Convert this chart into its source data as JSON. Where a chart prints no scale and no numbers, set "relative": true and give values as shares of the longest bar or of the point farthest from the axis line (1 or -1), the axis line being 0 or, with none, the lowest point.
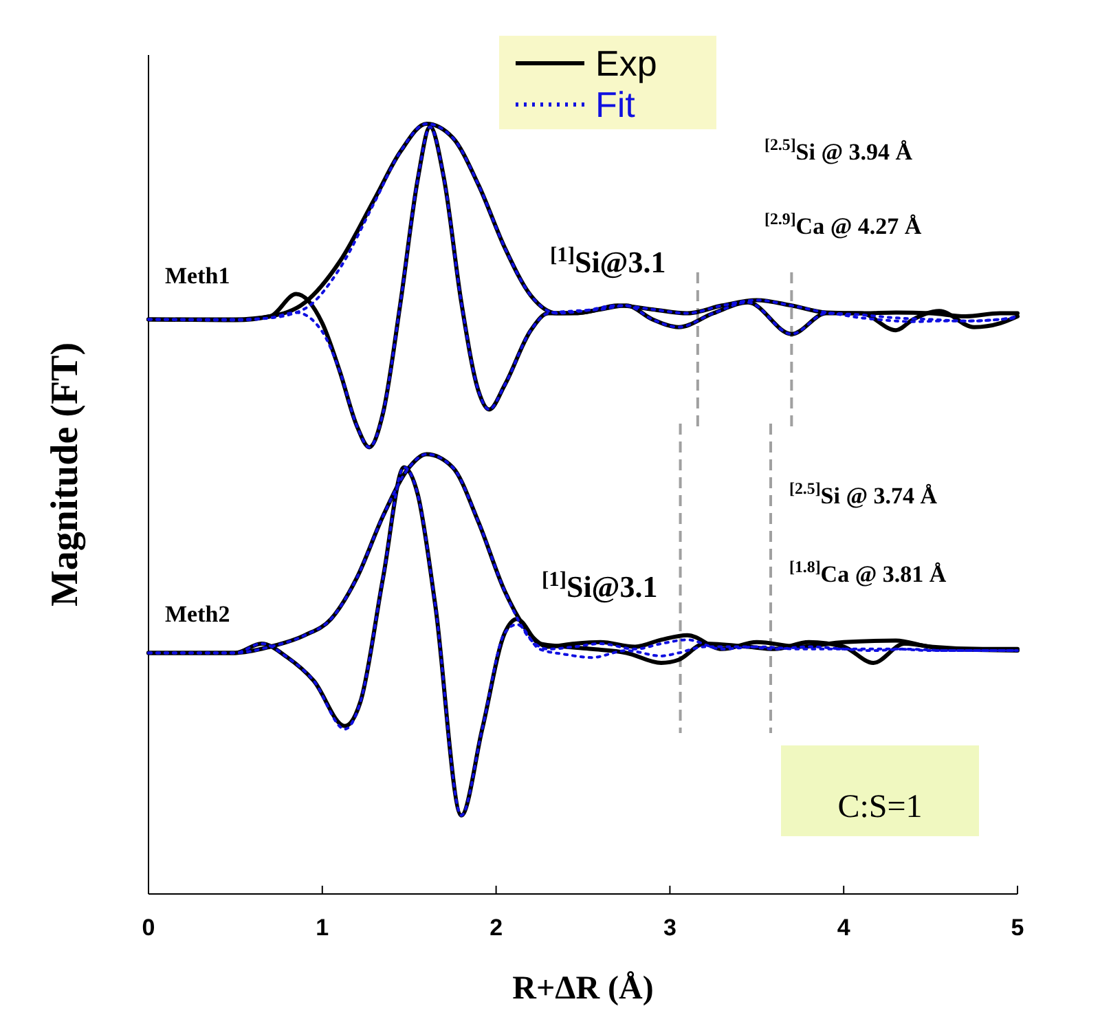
{
  "chart_data": {
    "type": "line",
    "relative": true,
    "xlabel": "R+ΔR (Å)",
    "ylabel": "Magnitude (FT)",
    "xlim": [
      0,
      5
    ],
    "xticks": [
      0,
      1,
      2,
      3,
      4,
      5
    ],
    "legend": "top",
    "grid": false,
    "series": [
      {
        "name": "Exp",
        "color": "#000000",
        "line_style": "solid",
        "x": [
          0,
          0.5,
          0.7,
          0.9,
          1.1,
          1.3,
          1.45,
          1.6,
          1.75,
          1.9,
          2.05,
          2.2,
          2.35,
          2.5,
          2.7,
          2.9,
          3.1,
          3.3,
          3.5,
          3.7,
          3.9,
          4.1,
          4.3,
          4.5,
          4.7,
          4.9,
          5
        ],
        "values": [
          0.746,
          0.746,
          0.75,
          0.768,
          0.821,
          0.902,
          0.964,
          1,
          0.982,
          0.92,
          0.839,
          0.777,
          0.754,
          0.755,
          0.764,
          0.759,
          0.754,
          0.764,
          0.771,
          0.764,
          0.755,
          0.754,
          0.755,
          0.754,
          0.75,
          0.754,
          0.754
        ]
      },
      {
        "color": "#000000",
        "line_style": "solid",
        "x": [
          0,
          0.5,
          0.7,
          0.85,
          1.0,
          1.1,
          1.2,
          1.27,
          1.35,
          1.45,
          1.55,
          1.62,
          1.7,
          1.8,
          1.9,
          1.96,
          2.05,
          2.2,
          2.3,
          2.45,
          2.6,
          2.75,
          2.9,
          3.05,
          3.25,
          3.45,
          3.7,
          3.9,
          4.1,
          4.3,
          4.4,
          4.55,
          4.75,
          4.9,
          5
        ],
        "values": [
          0.746,
          0.745,
          0.75,
          0.779,
          0.741,
          0.679,
          0.607,
          0.58,
          0.625,
          0.768,
          0.929,
          0.996,
          0.929,
          0.768,
          0.652,
          0.629,
          0.661,
          0.732,
          0.754,
          0.754,
          0.759,
          0.764,
          0.746,
          0.736,
          0.754,
          0.768,
          0.727,
          0.754,
          0.754,
          0.732,
          0.746,
          0.757,
          0.736,
          0.741,
          0.75
        ]
      },
      {
        "name": "Fit",
        "color": "#1010e0",
        "line_style": "dotted",
        "x": [
          0,
          0.5,
          0.7,
          0.9,
          1.1,
          1.3,
          1.45,
          1.6,
          1.75,
          1.9,
          2.05,
          2.2,
          2.35,
          2.5,
          2.7,
          2.9,
          3.1,
          3.3,
          3.5,
          3.7,
          3.9,
          4.1,
          4.3,
          4.5,
          4.7,
          4.9,
          5
        ],
        "values": [
          0.746,
          0.746,
          0.748,
          0.76,
          0.812,
          0.898,
          0.964,
          1,
          0.982,
          0.92,
          0.839,
          0.777,
          0.754,
          0.757,
          0.764,
          0.759,
          0.754,
          0.764,
          0.771,
          0.764,
          0.755,
          0.752,
          0.748,
          0.746,
          0.744,
          0.746,
          0.75
        ]
      },
      {
        "color": "#1010e0",
        "line_style": "dotted",
        "x": [
          0,
          0.5,
          0.7,
          0.85,
          1.0,
          1.1,
          1.2,
          1.27,
          1.35,
          1.45,
          1.55,
          1.62,
          1.7,
          1.8,
          1.9,
          1.96,
          2.05,
          2.2,
          2.3,
          2.45,
          2.6,
          2.75,
          2.9,
          3.05,
          3.25,
          3.45,
          3.7,
          3.9,
          4.1,
          4.3,
          4.4,
          4.55,
          4.75,
          4.9,
          5
        ],
        "values": [
          0.746,
          0.745,
          0.748,
          0.755,
          0.73,
          0.679,
          0.607,
          0.58,
          0.625,
          0.768,
          0.929,
          0.996,
          0.929,
          0.768,
          0.652,
          0.629,
          0.661,
          0.732,
          0.754,
          0.757,
          0.759,
          0.764,
          0.746,
          0.736,
          0.754,
          0.768,
          0.727,
          0.754,
          0.748,
          0.744,
          0.743,
          0.744,
          0.744,
          0.746,
          0.748
        ]
      },
      {
        "color": "#000000",
        "line_style": "solid",
        "x": [
          0,
          0.5,
          0.7,
          0.9,
          1.05,
          1.2,
          1.35,
          1.5,
          1.6,
          1.75,
          1.9,
          2.05,
          2.2,
          2.3,
          2.45,
          2.6,
          2.8,
          2.95,
          3.1,
          3.3,
          3.5,
          3.75,
          4.0,
          4.3,
          4.5,
          4.8,
          5
        ],
        "values": [
          0.313,
          0.313,
          0.321,
          0.336,
          0.357,
          0.411,
          0.491,
          0.554,
          0.571,
          0.554,
          0.482,
          0.393,
          0.336,
          0.321,
          0.325,
          0.327,
          0.321,
          0.33,
          0.336,
          0.318,
          0.327,
          0.321,
          0.327,
          0.329,
          0.321,
          0.318,
          0.318
        ]
      },
      {
        "color": "#000000",
        "line_style": "solid",
        "x": [
          0,
          0.5,
          0.65,
          0.8,
          0.95,
          1.13,
          1.22,
          1.35,
          1.47,
          1.55,
          1.65,
          1.8,
          1.92,
          2.05,
          2.12,
          2.25,
          2.4,
          2.55,
          2.75,
          2.95,
          3.05,
          3.2,
          3.45,
          3.6,
          3.8,
          4.0,
          4.17,
          4.35,
          4.6,
          5
        ],
        "values": [
          0.313,
          0.313,
          0.325,
          0.307,
          0.277,
          0.218,
          0.25,
          0.411,
          0.554,
          0.518,
          0.375,
          0.102,
          0.214,
          0.339,
          0.357,
          0.325,
          0.321,
          0.318,
          0.313,
          0.3,
          0.304,
          0.325,
          0.321,
          0.318,
          0.327,
          0.321,
          0.3,
          0.325,
          0.318,
          0.316
        ]
      },
      {
        "color": "#1010e0",
        "line_style": "dotted",
        "x": [
          0,
          0.5,
          0.7,
          0.9,
          1.05,
          1.2,
          1.35,
          1.5,
          1.6,
          1.75,
          1.9,
          2.05,
          2.2,
          2.3,
          2.45,
          2.6,
          2.8,
          2.95,
          3.1,
          3.3,
          3.5,
          3.75,
          4.0,
          4.3,
          4.5,
          4.8,
          5
        ],
        "values": [
          0.313,
          0.313,
          0.321,
          0.336,
          0.357,
          0.411,
          0.491,
          0.554,
          0.571,
          0.554,
          0.482,
          0.393,
          0.33,
          0.318,
          0.321,
          0.325,
          0.318,
          0.325,
          0.33,
          0.318,
          0.321,
          0.318,
          0.318,
          0.318,
          0.316,
          0.316,
          0.316
        ]
      },
      {
        "color": "#1010e0",
        "line_style": "dotted",
        "x": [
          0,
          0.5,
          0.65,
          0.8,
          0.95,
          1.13,
          1.22,
          1.35,
          1.47,
          1.55,
          1.65,
          1.8,
          1.92,
          2.05,
          2.12,
          2.25,
          2.4,
          2.55,
          2.75,
          2.95,
          3.05,
          3.2,
          3.45,
          3.6,
          3.8,
          4.0,
          4.17,
          4.35,
          4.6,
          5
        ],
        "values": [
          0.313,
          0.313,
          0.325,
          0.307,
          0.277,
          0.214,
          0.25,
          0.411,
          0.554,
          0.518,
          0.375,
          0.102,
          0.214,
          0.339,
          0.35,
          0.318,
          0.311,
          0.307,
          0.316,
          0.309,
          0.313,
          0.321,
          0.321,
          0.318,
          0.321,
          0.318,
          0.316,
          0.318,
          0.316,
          0.316
        ]
      }
    ],
    "ref_lines": [
      {
        "axis": "x",
        "value": 3.16,
        "color": "#a0a0a0",
        "line_style": "dashed"
      },
      {
        "axis": "x",
        "value": 3.7,
        "color": "#a0a0a0",
        "line_style": "dashed"
      },
      {
        "axis": "x",
        "value": 3.06,
        "color": "#a0a0a0",
        "line_style": "dashed"
      },
      {
        "axis": "x",
        "value": 3.58,
        "color": "#a0a0a0",
        "line_style": "dashed"
      }
    ],
    "annotations": [
      "Meth1",
      "Meth2",
      "$^{[1]}$Si@3.1",
      "$^{[2.5]}$Si @ 3.94 Å",
      "$^{[2.9]}$Ca @ 4.27 Å",
      "$^{[1]}$Si@3.1",
      "$^{[2.5]}$Si @ 3.74 Å",
      "$^{[1.8]}$Ca @ 3.81 Å",
      "C:S=1"
    ]
  }
}
